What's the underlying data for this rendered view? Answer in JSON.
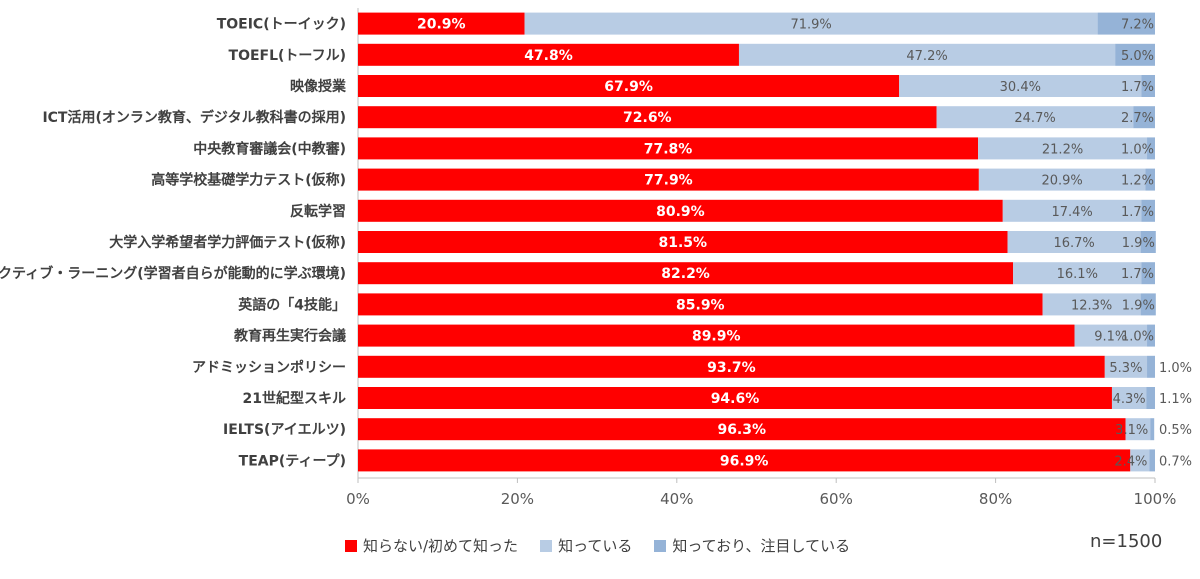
{
  "chart_data": {
    "type": "bar",
    "orientation": "horizontal",
    "stacked": true,
    "categories": [
      "TOEIC(トーイック)",
      "TOEFL(トーフル)",
      "映像授業",
      "ICT活用(オンラン教育、デジタル教科書の採用)",
      "中央教育審議会(中教審)",
      "高等学校基礎学力テスト(仮称)",
      "反転学習",
      "大学入学希望者学力評価テスト(仮称)",
      "アクティブ・ラーニング(学習者自らが能動的に学ぶ環境)",
      "英語の「4技能」",
      "教育再生実行会議",
      "アドミッションポリシー",
      "21世紀型スキル",
      "IELTS(アイエルツ)",
      "TEAP(ティープ)"
    ],
    "series": [
      {
        "name": "知らない/初めて知った",
        "color": "#ff0000",
        "values": [
          20.9,
          47.8,
          67.9,
          72.6,
          77.8,
          77.9,
          80.9,
          81.5,
          82.2,
          85.9,
          89.9,
          93.7,
          94.6,
          96.3,
          96.9
        ],
        "labels": [
          "20.9%",
          "47.8%",
          "67.9%",
          "72.6%",
          "77.8%",
          "77.9%",
          "80.9%",
          "81.5%",
          "82.2%",
          "85.9%",
          "89.9%",
          "93.7%",
          "94.6%",
          "96.3%",
          "96.9%"
        ]
      },
      {
        "name": "知っている",
        "color": "#b8cce4",
        "values": [
          71.9,
          47.2,
          30.4,
          24.7,
          21.2,
          20.9,
          17.4,
          16.7,
          16.1,
          12.3,
          9.1,
          5.3,
          4.3,
          3.1,
          2.4
        ],
        "labels": [
          "71.9%",
          "47.2%",
          "30.4%",
          "24.7%",
          "21.2%",
          "20.9%",
          "17.4%",
          "16.7%",
          "16.1%",
          "12.3%",
          "9.1%",
          "5.3%",
          "4.3%",
          "3.1%",
          "2.4%"
        ]
      },
      {
        "name": "知っており、注目している",
        "color": "#95b3d7",
        "values": [
          7.2,
          5.0,
          1.7,
          2.7,
          1.0,
          1.2,
          1.7,
          1.9,
          1.7,
          1.9,
          1.0,
          1.0,
          1.1,
          0.5,
          0.7
        ],
        "labels": [
          "7.2%",
          "5.0%",
          "1.7%",
          "2.7%",
          "1.0%",
          "1.2%",
          "1.7%",
          "1.9%",
          "1.7%",
          "1.9%",
          "1.0%",
          "1.0%",
          "1.1%",
          "0.5%",
          "0.7%"
        ]
      }
    ],
    "xticks": [
      "0%",
      "20%",
      "40%",
      "60%",
      "80%",
      "100%"
    ],
    "xlim": [
      0,
      100
    ],
    "grid": false,
    "legend_position": "bottom"
  },
  "sample_note": "n=1500"
}
